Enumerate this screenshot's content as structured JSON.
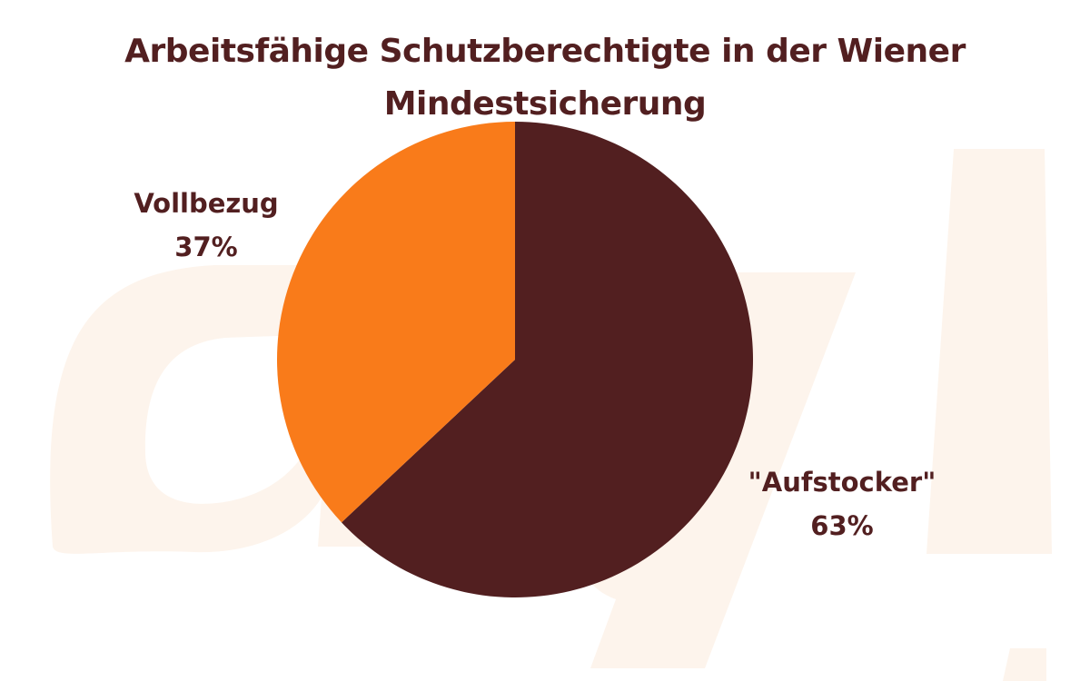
{
  "colors": {
    "dark_slice": "#521f20",
    "orange_slice": "#f97b1a",
    "text": "#521f20",
    "watermark": "#fdf4ec"
  },
  "chart_data": {
    "type": "pie",
    "title": "Arbeitsfähige Schutzberechtigte in der Wiener Mindestsicherung",
    "title_lines": [
      "Arbeitsfähige Schutzberechtigte in der Wiener",
      "Mindestsicherung"
    ],
    "slices": [
      {
        "label": "\"Aufstocker\"",
        "value": 63,
        "value_label": "63%",
        "color": "#521f20"
      },
      {
        "label": "Vollbezug",
        "value": 37,
        "value_label": "37%",
        "color": "#f97b1a"
      }
    ],
    "start_angle": "12 o'clock",
    "direction": "clockwise",
    "legend": "none"
  }
}
